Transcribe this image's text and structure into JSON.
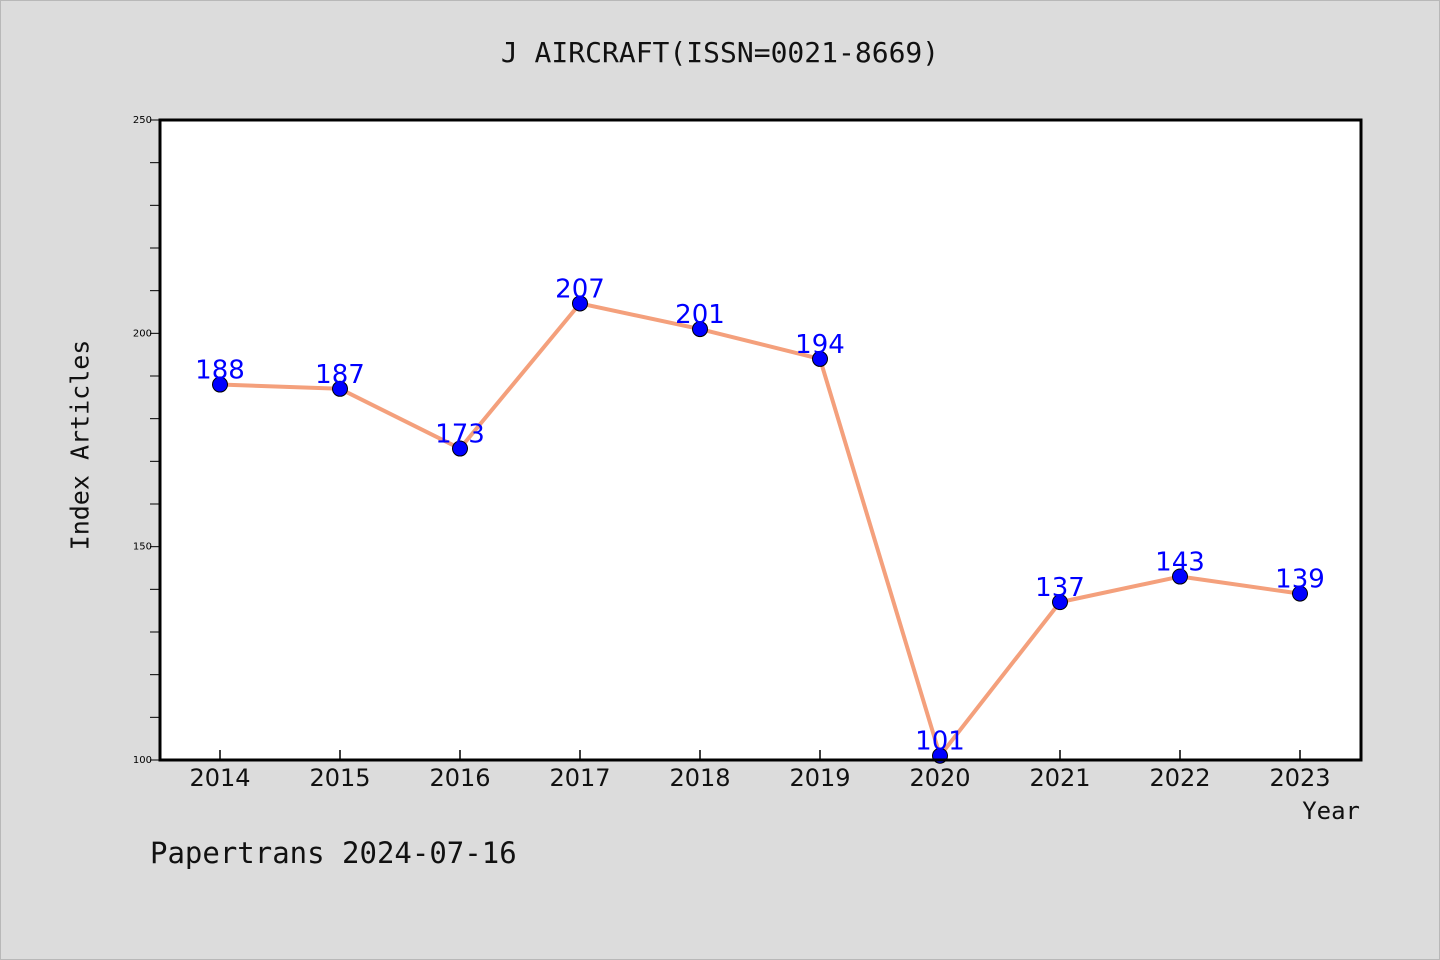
{
  "chart_data": {
    "type": "line",
    "title": "J AIRCRAFT(ISSN=0021-8669)",
    "xlabel": "Year",
    "ylabel": "Index Articles",
    "categories": [
      "2014",
      "2015",
      "2016",
      "2017",
      "2018",
      "2019",
      "2020",
      "2021",
      "2022",
      "2023"
    ],
    "values": [
      188,
      187,
      173,
      207,
      201,
      194,
      101,
      137,
      143,
      139
    ],
    "ylim": [
      100,
      250
    ],
    "y_major_ticks": [
      100,
      150,
      200,
      250
    ],
    "y_minor_step": 10,
    "grid": false,
    "legend": "none",
    "line_color": "#f4a07c",
    "marker_color": "#0000ff",
    "data_label_color": "#0000ff"
  },
  "footer": {
    "credit": "Papertrans 2024-07-16"
  },
  "colors": {
    "background": "#dcdcdc",
    "plot_background": "#ffffff"
  }
}
